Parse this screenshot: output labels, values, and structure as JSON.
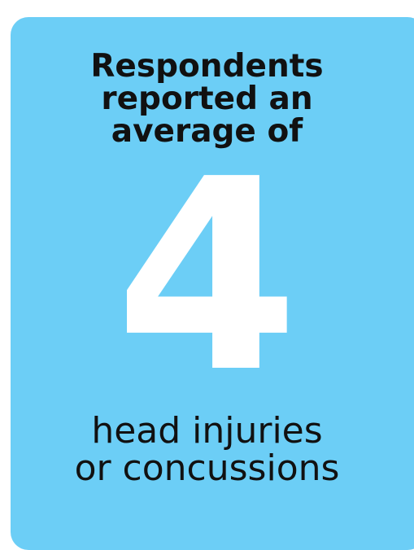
{
  "colors": {
    "card_background": "#6ccef6",
    "heading_text": "#111111",
    "number_text": "#ffffff"
  },
  "heading": {
    "lines": [
      "Respondents",
      "reported an",
      "average of"
    ]
  },
  "stat": {
    "value": "4"
  },
  "subtext": {
    "lines": [
      "head injuries",
      "or concussions"
    ]
  }
}
